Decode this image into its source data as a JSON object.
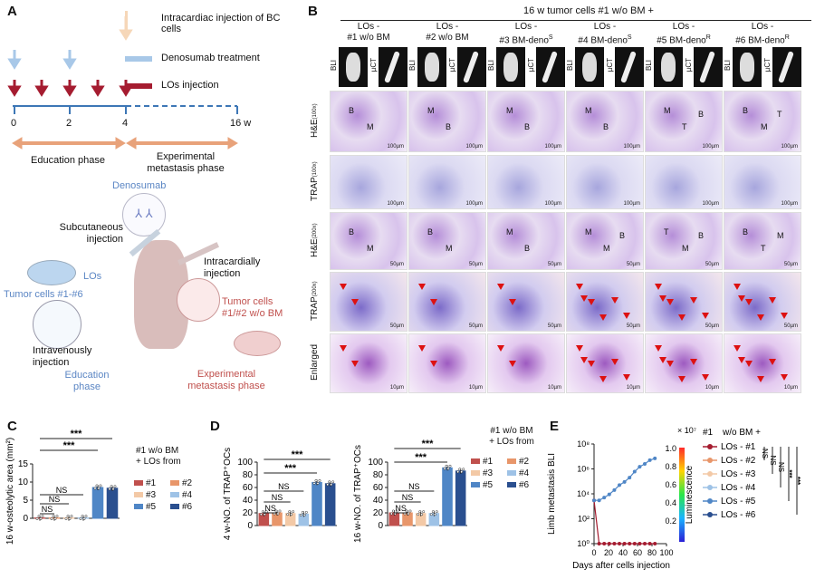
{
  "panels": {
    "A": {
      "label": "A",
      "legend": [
        "Intracardiac injection of BC cells",
        "Denosumab treatment",
        "LOs injection"
      ],
      "ticks": [
        "0",
        "2",
        "4",
        "16 w"
      ],
      "phases": [
        "Education phase",
        "Experimental metastasis phase"
      ],
      "schema": {
        "denosumab": "Denosumab",
        "subq": "Subcutaneous injection",
        "intracardiac": "Intracardially injection",
        "los": "LOs",
        "tumor_cells": "Tumor cells #1-#6",
        "tumor_cells12": "Tumor cells #1/#2 w/o BM",
        "intravenous": "Intravenously injection",
        "education": "Education phase",
        "experimental": "Experimental metastasis phase"
      }
    },
    "B": {
      "label": "B",
      "header": "16 w tumor cells #1 w/o BM +",
      "columns": [
        {
          "l1": "LOs -",
          "l2": "#1 w/o BM",
          "sup": ""
        },
        {
          "l1": "LOs -",
          "l2": "#2 w/o BM",
          "sup": ""
        },
        {
          "l1": "LOs -",
          "l2": "#3 BM-deno",
          "sup": "S"
        },
        {
          "l1": "LOs -",
          "l2": "#4 BM-deno",
          "sup": "S"
        },
        {
          "l1": "LOs -",
          "l2": "#5 BM-deno",
          "sup": "R"
        },
        {
          "l1": "LOs -",
          "l2": "#6 BM-deno",
          "sup": "R"
        }
      ],
      "mini_labels": [
        "BLI",
        "µCT"
      ],
      "rows": [
        {
          "name": "H&E",
          "sup": "(100x)",
          "scale": "100µm"
        },
        {
          "name": "TRAP",
          "sup": "(100x)",
          "scale": "100µm"
        },
        {
          "name": "H&E",
          "sup": "(200x)",
          "scale": "50µm"
        },
        {
          "name": "TRAP",
          "sup": "(200x)",
          "scale": "50µm"
        },
        {
          "name": "Enlarged",
          "sup": "",
          "scale": "10µm"
        }
      ],
      "tile_labels": {
        "r0": [
          [
            "B",
            "M"
          ],
          [
            "M",
            "B"
          ],
          [
            "M",
            "B"
          ],
          [
            "M",
            "B"
          ],
          [
            "M",
            "T",
            "B"
          ],
          [
            "B",
            "M",
            "T"
          ]
        ],
        "r2": [
          [
            "B",
            "M"
          ],
          [
            "B",
            "M"
          ],
          [
            "M",
            "B"
          ],
          [
            "M",
            "M",
            "B"
          ],
          [
            "T",
            "M",
            "B"
          ],
          [
            "B",
            "T",
            "M"
          ]
        ]
      }
    },
    "C": {
      "label": "C",
      "chart_data": {
        "type": "bar",
        "ylabel": "16 w-osteolytic area (mm²)",
        "ylim": [
          0,
          15
        ],
        "yticks": [
          "0",
          "5",
          "10",
          "15"
        ],
        "categories": [
          "#1",
          "#2",
          "#3",
          "#4",
          "#5",
          "#6"
        ],
        "values": [
          0.1,
          0.1,
          0.1,
          0.1,
          8.5,
          8.3
        ],
        "sig": [
          "NS",
          "NS",
          "NS",
          "***",
          "***"
        ],
        "legend_title": [
          "#1 w/o BM",
          "+ LOs from"
        ]
      }
    },
    "D": {
      "label": "D",
      "chart_data": [
        {
          "type": "bar",
          "ylabel": "4 w-NO. of TRAP⁺OCs",
          "ylim": [
            0,
            100
          ],
          "yticks": [
            "0",
            "20",
            "40",
            "60",
            "80",
            "100"
          ],
          "categories": [
            "#1",
            "#2",
            "#3",
            "#4",
            "#5",
            "#6"
          ],
          "values": [
            19,
            20,
            19,
            18,
            68,
            66
          ],
          "sig": [
            "NS",
            "NS",
            "NS",
            "***",
            "***"
          ]
        },
        {
          "type": "bar",
          "ylabel": "16 w-NO. of TRAP⁺OCs",
          "ylim": [
            0,
            100
          ],
          "yticks": [
            "0",
            "20",
            "40",
            "60",
            "80",
            "100"
          ],
          "categories": [
            "#1",
            "#2",
            "#3",
            "#4",
            "#5",
            "#6"
          ],
          "values": [
            20,
            20,
            19,
            19,
            91,
            86
          ],
          "sig": [
            "NS",
            "NS",
            "NS",
            "***",
            "***"
          ]
        }
      ],
      "legend_title": [
        "#1 w/o BM",
        "+ LOs from"
      ]
    },
    "E": {
      "label": "E",
      "chart_data": {
        "type": "line",
        "ylabel": "Limb metastasis BLI",
        "xlabel": "Days after cells injection",
        "xticks": [
          "0",
          "20",
          "40",
          "60",
          "80",
          "100"
        ],
        "yticks": [
          "10⁰",
          "10²",
          "10⁴",
          "10⁶",
          "10⁸"
        ],
        "x": [
          0,
          7,
          14,
          21,
          28,
          35,
          42,
          49,
          56,
          63,
          70,
          77,
          84
        ],
        "series": [
          {
            "name": "LOs - #1",
            "values": [
              3000,
              1,
              1,
              1,
              1,
              1,
              1,
              1,
              1,
              1,
              1,
              1,
              1
            ]
          },
          {
            "name": "LOs - #5",
            "values": [
              3000,
              3000,
              5000,
              9000,
              20000,
              50000,
              90000,
              200000,
              600000,
              1500000,
              2500000,
              5000000,
              7000000
            ]
          }
        ],
        "colorbar": {
          "scale": "× 10⁷",
          "ticks": [
            "1.0",
            "0.8",
            "0.6",
            "0.4",
            "0.2"
          ],
          "label": "Luminescence"
        },
        "legend_title": [
          "#1",
          "w/o BM +"
        ],
        "legend": [
          "LOs - #1",
          "LOs - #2",
          "LOs - #3",
          "LOs - #4",
          "LOs - #5",
          "LOs - #6"
        ],
        "sig": [
          "NS",
          "NS",
          "NS",
          "***",
          "***"
        ]
      }
    }
  },
  "colors": [
    "#c0504d",
    "#e8966a",
    "#f3c9a6",
    "#9ec2e6",
    "#4f86c6",
    "#2a4f8f"
  ]
}
